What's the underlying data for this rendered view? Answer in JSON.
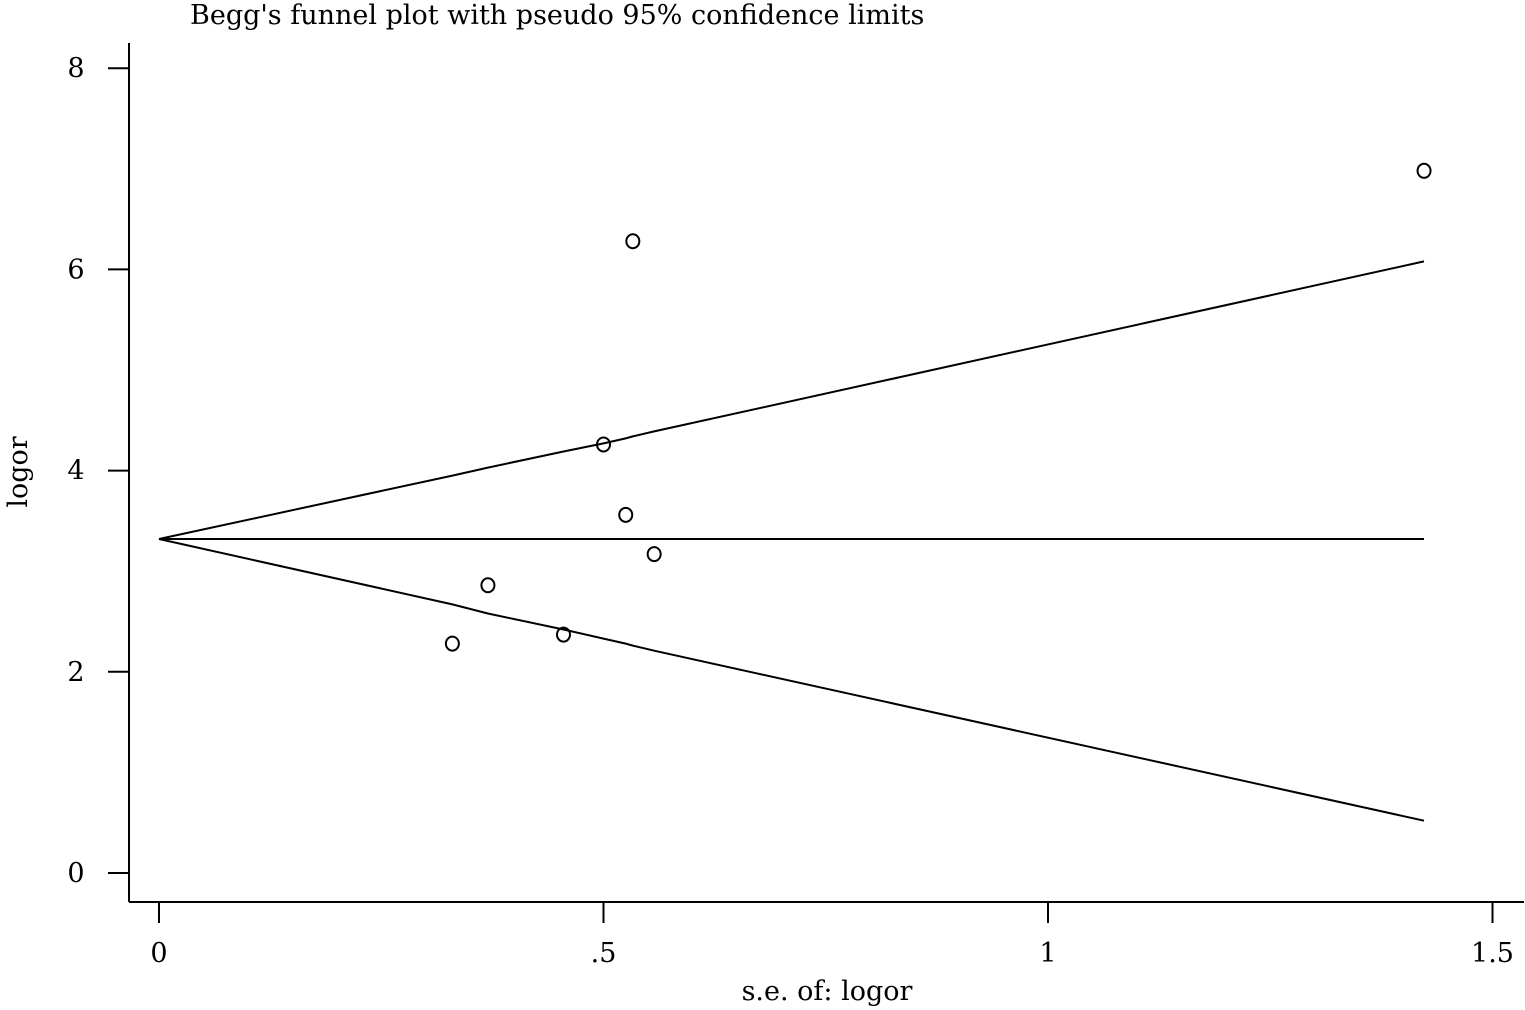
{
  "chart_data": {
    "type": "scatter",
    "title": "Begg's funnel plot with pseudo 95% confidence limits",
    "xlabel": "s.e. of: logor",
    "ylabel": "logor",
    "xlim": [
      -0.1,
      1.53
    ],
    "ylim": [
      -0.3,
      8.3
    ],
    "x_ticks": [
      0,
      0.5,
      1,
      1.5
    ],
    "x_tick_labels": [
      "0",
      ".5",
      "1",
      "1.5"
    ],
    "y_ticks": [
      0,
      2,
      4,
      6,
      8
    ],
    "y_tick_labels": [
      "0",
      "2",
      "4",
      "6",
      "8"
    ],
    "grid": false,
    "legend": "none",
    "marker": "hollow-circle",
    "points": [
      {
        "x": 0.33,
        "y": 2.28
      },
      {
        "x": 0.37,
        "y": 2.86
      },
      {
        "x": 0.455,
        "y": 2.37
      },
      {
        "x": 0.5,
        "y": 4.26
      },
      {
        "x": 0.525,
        "y": 3.56
      },
      {
        "x": 0.533,
        "y": 6.28
      },
      {
        "x": 0.557,
        "y": 3.17
      },
      {
        "x": 1.423,
        "y": 6.98
      }
    ],
    "pooled_line": {
      "x": [
        0,
        1.423
      ],
      "y": [
        3.32,
        3.32
      ]
    },
    "upper_limit": {
      "x": [
        0,
        0.33,
        0.37,
        0.455,
        0.5,
        0.525,
        0.533,
        0.557,
        1.423
      ],
      "y": [
        3.32,
        3.95,
        4.03,
        4.19,
        4.27,
        4.32,
        4.34,
        4.39,
        6.08
      ]
    },
    "lower_limit": {
      "x": [
        0,
        0.33,
        0.37,
        0.455,
        0.5,
        0.525,
        0.533,
        0.557,
        1.423
      ],
      "y": [
        3.32,
        2.67,
        2.58,
        2.42,
        2.33,
        2.28,
        2.26,
        2.21,
        0.52
      ]
    },
    "colors": {
      "line": "#000000",
      "marker": "#000000",
      "background": "#ffffff"
    }
  }
}
